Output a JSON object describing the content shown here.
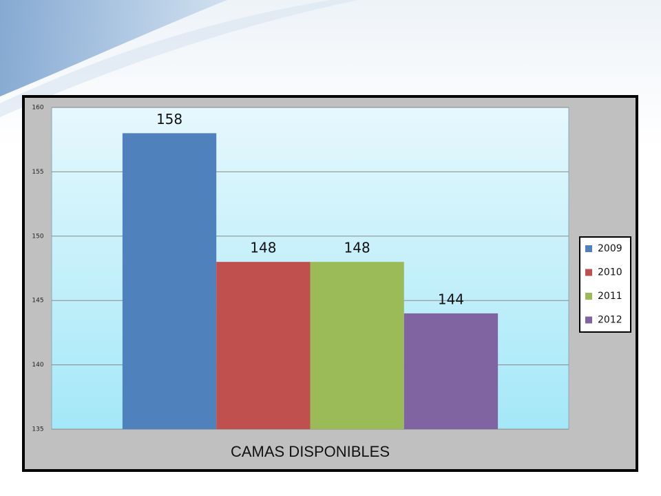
{
  "chart_data": {
    "type": "bar",
    "categories": [
      "CAMAS DISPONIBLES"
    ],
    "series": [
      {
        "name": "2009",
        "color": "#4f81bd",
        "values": [
          158
        ]
      },
      {
        "name": "2010",
        "color": "#c0504d",
        "values": [
          148
        ]
      },
      {
        "name": "2011",
        "color": "#9bbb59",
        "values": [
          148
        ]
      },
      {
        "name": "2012",
        "color": "#8064a2",
        "values": [
          144
        ]
      }
    ],
    "ylim": [
      135,
      160
    ],
    "yticks": [
      135,
      140,
      145,
      150,
      155,
      160
    ],
    "grid": true,
    "legend": "right"
  }
}
